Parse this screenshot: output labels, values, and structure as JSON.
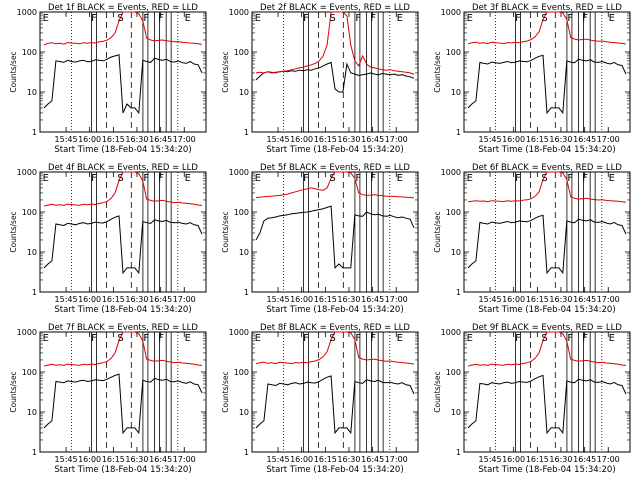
{
  "figure": {
    "background": "#ffffff",
    "event_color": "#000000",
    "lld_color": "#e00000"
  },
  "chart_data": [
    {
      "type": "line",
      "title": "Det 1f BLACK = Events, RED = LLD",
      "xlabel": "Start Time (18-Feb-04 15:34:20)",
      "ylabel": "Counts/sec",
      "ylog": true,
      "ylim": [
        1,
        1000
      ],
      "y_ticks": [
        "1",
        "10",
        "100",
        "1000"
      ],
      "x_ticks": [
        "15:45",
        "16:00",
        "16:15",
        "16:30",
        "16:45",
        "17:00"
      ],
      "markers": [
        "E",
        "F",
        "S",
        "F",
        "F",
        "E"
      ],
      "series": [
        {
          "color": "#000000",
          "values": [
            4,
            5,
            6,
            60,
            58,
            55,
            62,
            58,
            56,
            60,
            62,
            57,
            58,
            64,
            62,
            60,
            66,
            75,
            80,
            85,
            3,
            5,
            4,
            4,
            3,
            62,
            58,
            55,
            70,
            65,
            62,
            66,
            58,
            56,
            60,
            54,
            52,
            58,
            50,
            48,
            30
          ]
        },
        {
          "color": "#e00000",
          "values": [
            150,
            165,
            170,
            160,
            165,
            158,
            172,
            168,
            165,
            160,
            170,
            166,
            172,
            168,
            180,
            185,
            200,
            230,
            300,
            600,
            1000,
            1000,
            1000,
            1000,
            900,
            600,
            220,
            200,
            190,
            195,
            200,
            190,
            185,
            180,
            182,
            175,
            172,
            168,
            165,
            160,
            155
          ]
        }
      ]
    },
    {
      "type": "line",
      "title": "Det 2f BLACK = Events, RED = LLD",
      "xlabel": "Start Time (18-Feb-04 15:34:20)",
      "ylabel": "Counts/sec",
      "ylog": true,
      "ylim": [
        1,
        1000
      ],
      "y_ticks": [
        "1",
        "10",
        "100",
        "1000"
      ],
      "x_ticks": [
        "15:45",
        "16:00",
        "16:15",
        "16:30",
        "16:45",
        "17:00"
      ],
      "markers": [
        "E",
        "F",
        "S",
        "F",
        "F",
        "E"
      ],
      "series": [
        {
          "color": "#000000",
          "values": [
            20,
            25,
            30,
            32,
            30,
            31,
            32,
            33,
            32,
            34,
            33,
            35,
            34,
            36,
            35,
            38,
            40,
            45,
            50,
            55,
            12,
            10,
            10,
            50,
            30,
            28,
            26,
            27,
            28,
            30,
            28,
            27,
            29,
            28,
            27,
            28,
            26,
            27,
            25,
            24,
            22
          ]
        },
        {
          "color": "#e00000",
          "values": [
            30,
            31,
            30,
            32,
            31,
            30,
            32,
            33,
            34,
            36,
            38,
            40,
            42,
            45,
            48,
            52,
            60,
            80,
            150,
            1000,
            1000,
            1000,
            1000,
            800,
            150,
            60,
            45,
            80,
            50,
            42,
            40,
            38,
            36,
            35,
            36,
            34,
            33,
            32,
            31,
            30,
            28
          ]
        }
      ]
    },
    {
      "type": "line",
      "title": "Det 3f BLACK = Events, RED = LLD",
      "xlabel": "Start Time (18-Feb-04 15:34:20)",
      "ylabel": "Counts/sec",
      "ylog": true,
      "ylim": [
        1,
        1000
      ],
      "y_ticks": [
        "1",
        "10",
        "100",
        "1000"
      ],
      "x_ticks": [
        "15:45",
        "16:00",
        "16:15",
        "16:30",
        "16:45",
        "17:00"
      ],
      "markers": [
        "E",
        "F",
        "S",
        "F",
        "F",
        "E"
      ],
      "series": [
        {
          "color": "#000000",
          "values": [
            4,
            5,
            6,
            55,
            52,
            50,
            56,
            54,
            52,
            55,
            58,
            54,
            56,
            60,
            58,
            57,
            62,
            70,
            78,
            82,
            3,
            4,
            4,
            4,
            3,
            60,
            56,
            54,
            66,
            62,
            60,
            64,
            56,
            55,
            58,
            53,
            50,
            55,
            48,
            46,
            28
          ]
        },
        {
          "color": "#e00000",
          "values": [
            160,
            170,
            175,
            165,
            170,
            162,
            176,
            170,
            168,
            162,
            172,
            168,
            175,
            170,
            182,
            188,
            205,
            240,
            320,
            650,
            1000,
            1000,
            1000,
            1000,
            950,
            650,
            230,
            210,
            200,
            205,
            210,
            198,
            192,
            186,
            188,
            180,
            176,
            172,
            168,
            164,
            158
          ]
        }
      ]
    },
    {
      "type": "line",
      "title": "Det 4f BLACK = Events, RED = LLD",
      "xlabel": "Start Time (18-Feb-04 15:34:20)",
      "ylabel": "Counts/sec",
      "ylog": true,
      "ylim": [
        1,
        1000
      ],
      "y_ticks": [
        "1",
        "10",
        "100",
        "1000"
      ],
      "x_ticks": [
        "15:45",
        "16:00",
        "16:15",
        "16:30",
        "16:45",
        "17:00"
      ],
      "markers": [
        "E",
        "F",
        "S",
        "F",
        "F",
        "E"
      ],
      "series": [
        {
          "color": "#000000",
          "values": [
            4,
            5,
            6,
            50,
            48,
            46,
            52,
            50,
            48,
            52,
            54,
            50,
            52,
            56,
            54,
            53,
            58,
            66,
            74,
            80,
            3,
            4,
            4,
            4,
            3,
            58,
            54,
            52,
            64,
            60,
            58,
            62,
            55,
            54,
            56,
            52,
            50,
            54,
            48,
            46,
            28
          ]
        },
        {
          "color": "#e00000",
          "values": [
            140,
            150,
            155,
            148,
            152,
            146,
            158,
            154,
            150,
            146,
            156,
            152,
            158,
            154,
            165,
            170,
            185,
            220,
            300,
            620,
            1000,
            1000,
            1000,
            1000,
            900,
            600,
            210,
            195,
            185,
            190,
            195,
            185,
            178,
            172,
            175,
            168,
            165,
            160,
            156,
            150,
            145
          ]
        }
      ]
    },
    {
      "type": "line",
      "title": "Det 5f BLACK = Events, RED = LLD",
      "xlabel": "Start Time (18-Feb-04 15:34:20)",
      "ylabel": "Counts/sec",
      "ylog": true,
      "ylim": [
        1,
        1000
      ],
      "y_ticks": [
        "1",
        "10",
        "100",
        "1000"
      ],
      "x_ticks": [
        "15:45",
        "16:00",
        "16:15",
        "16:30",
        "16:45",
        "17:00"
      ],
      "markers": [
        "E",
        "F",
        "S",
        "F",
        "F",
        "E"
      ],
      "series": [
        {
          "color": "#000000",
          "values": [
            20,
            30,
            60,
            70,
            72,
            75,
            80,
            82,
            85,
            90,
            92,
            95,
            98,
            100,
            105,
            110,
            115,
            120,
            130,
            140,
            4,
            5,
            4,
            4,
            4,
            85,
            80,
            78,
            100,
            90,
            85,
            88,
            80,
            78,
            82,
            76,
            72,
            75,
            70,
            66,
            40
          ]
        },
        {
          "color": "#e00000",
          "values": [
            230,
            235,
            240,
            245,
            250,
            255,
            260,
            270,
            280,
            300,
            320,
            340,
            360,
            380,
            400,
            380,
            360,
            350,
            400,
            700,
            1000,
            1000,
            1000,
            1000,
            950,
            700,
            300,
            270,
            260,
            265,
            270,
            260,
            255,
            250,
            248,
            245,
            240,
            238,
            235,
            230,
            225
          ]
        }
      ]
    },
    {
      "type": "line",
      "title": "Det 6f BLACK = Events, RED = LLD",
      "xlabel": "Start Time (18-Feb-04 15:34:20)",
      "ylabel": "Counts/sec",
      "ylog": true,
      "ylim": [
        1,
        1000
      ],
      "y_ticks": [
        "1",
        "10",
        "100",
        "1000"
      ],
      "x_ticks": [
        "15:45",
        "16:00",
        "16:15",
        "16:30",
        "16:45",
        "17:00"
      ],
      "markers": [
        "E",
        "F",
        "S",
        "F",
        "F",
        "E"
      ],
      "series": [
        {
          "color": "#000000",
          "values": [
            4,
            5,
            6,
            55,
            52,
            50,
            56,
            54,
            52,
            55,
            58,
            54,
            56,
            60,
            58,
            57,
            62,
            70,
            78,
            82,
            3,
            4,
            4,
            4,
            3,
            60,
            56,
            54,
            66,
            62,
            60,
            64,
            56,
            55,
            58,
            53,
            50,
            55,
            48,
            46,
            28
          ]
        },
        {
          "color": "#e00000",
          "values": [
            180,
            185,
            190,
            185,
            188,
            182,
            192,
            188,
            186,
            182,
            190,
            186,
            192,
            188,
            198,
            202,
            215,
            245,
            320,
            650,
            1000,
            1000,
            1000,
            1000,
            950,
            650,
            240,
            220,
            210,
            215,
            220,
            210,
            205,
            200,
            202,
            195,
            192,
            188,
            185,
            180,
            175
          ]
        }
      ]
    },
    {
      "type": "line",
      "title": "Det 7f BLACK = Events, RED = LLD",
      "xlabel": "Start Time (18-Feb-04 15:34:20)",
      "ylabel": "Counts/sec",
      "ylog": true,
      "ylim": [
        1,
        1000
      ],
      "y_ticks": [
        "1",
        "10",
        "100",
        "1000"
      ],
      "x_ticks": [
        "15:45",
        "16:00",
        "16:15",
        "16:30",
        "16:45",
        "17:00"
      ],
      "markers": [
        "E",
        "F",
        "S",
        "F",
        "F",
        "E"
      ],
      "series": [
        {
          "color": "#000000",
          "values": [
            4,
            5,
            6,
            58,
            56,
            54,
            60,
            58,
            56,
            60,
            62,
            58,
            60,
            64,
            62,
            61,
            66,
            74,
            82,
            88,
            3,
            4,
            4,
            4,
            3,
            62,
            58,
            56,
            70,
            64,
            62,
            66,
            58,
            57,
            60,
            55,
            52,
            57,
            50,
            48,
            30
          ]
        },
        {
          "color": "#e00000",
          "values": [
            140,
            150,
            155,
            148,
            152,
            146,
            158,
            154,
            150,
            146,
            156,
            152,
            158,
            154,
            165,
            170,
            185,
            220,
            300,
            620,
            1000,
            1000,
            1000,
            1000,
            900,
            600,
            210,
            195,
            185,
            190,
            195,
            185,
            178,
            172,
            175,
            168,
            165,
            160,
            156,
            150,
            145
          ]
        }
      ]
    },
    {
      "type": "line",
      "title": "Det 8f BLACK = Events, RED = LLD",
      "xlabel": "Start Time (18-Feb-04 15:34:20)",
      "ylabel": "Counts/sec",
      "ylog": true,
      "ylim": [
        1,
        1000
      ],
      "y_ticks": [
        "1",
        "10",
        "100",
        "1000"
      ],
      "x_ticks": [
        "15:45",
        "16:00",
        "16:15",
        "16:30",
        "16:45",
        "17:00"
      ],
      "markers": [
        "E",
        "F",
        "S",
        "F",
        "F",
        "E"
      ],
      "series": [
        {
          "color": "#000000",
          "values": [
            4,
            5,
            6,
            50,
            48,
            46,
            52,
            50,
            48,
            52,
            54,
            50,
            52,
            56,
            54,
            53,
            58,
            66,
            74,
            80,
            3,
            4,
            4,
            4,
            3,
            58,
            54,
            52,
            64,
            60,
            58,
            62,
            55,
            54,
            56,
            52,
            50,
            54,
            48,
            46,
            28
          ]
        },
        {
          "color": "#e00000",
          "values": [
            160,
            170,
            175,
            165,
            170,
            162,
            176,
            170,
            168,
            162,
            172,
            168,
            175,
            170,
            182,
            188,
            205,
            240,
            320,
            650,
            1000,
            1000,
            1000,
            1000,
            950,
            650,
            230,
            210,
            200,
            205,
            210,
            198,
            192,
            186,
            188,
            180,
            176,
            172,
            168,
            164,
            158
          ]
        }
      ]
    },
    {
      "type": "line",
      "title": "Det 9f BLACK = Events, RED = LLD",
      "xlabel": "Start Time (18-Feb-04 15:34:20)",
      "ylabel": "Counts/sec",
      "ylog": true,
      "ylim": [
        1,
        1000
      ],
      "y_ticks": [
        "1",
        "10",
        "100",
        "1000"
      ],
      "x_ticks": [
        "15:45",
        "16:00",
        "16:15",
        "16:30",
        "16:45",
        "17:00"
      ],
      "markers": [
        "E",
        "F",
        "S",
        "F",
        "F",
        "E"
      ],
      "series": [
        {
          "color": "#000000",
          "values": [
            4,
            5,
            6,
            52,
            50,
            48,
            54,
            52,
            50,
            54,
            56,
            52,
            54,
            58,
            56,
            55,
            60,
            68,
            76,
            82,
            3,
            4,
            4,
            4,
            3,
            60,
            56,
            54,
            66,
            62,
            60,
            64,
            56,
            55,
            58,
            53,
            50,
            55,
            48,
            46,
            28
          ]
        },
        {
          "color": "#e00000",
          "values": [
            140,
            150,
            155,
            148,
            152,
            146,
            158,
            154,
            150,
            146,
            156,
            152,
            158,
            154,
            165,
            170,
            185,
            220,
            300,
            620,
            1000,
            1000,
            1000,
            1000,
            900,
            600,
            210,
            195,
            185,
            190,
            195,
            185,
            178,
            172,
            175,
            168,
            165,
            160,
            156,
            150,
            145
          ]
        }
      ]
    }
  ]
}
